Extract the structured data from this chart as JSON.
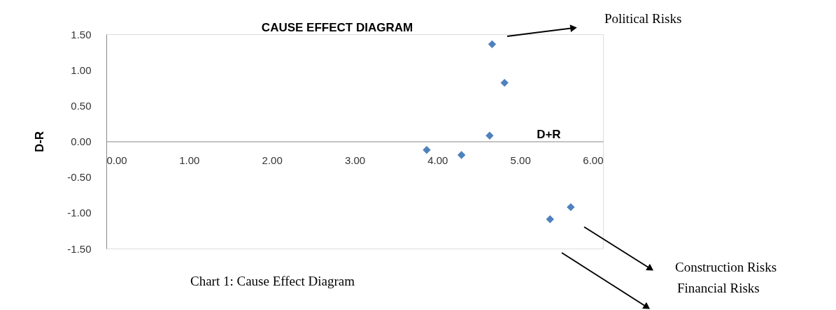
{
  "chart_data": {
    "type": "scatter",
    "title": "CAUSE EFFECT DIAGRAM",
    "xlabel": "D+R",
    "ylabel": "D-R",
    "x": [
      4.66,
      4.81,
      4.63,
      3.87,
      4.29,
      5.61,
      5.36
    ],
    "series": [
      {
        "color": "#4f81bd",
        "values": [
          1.36,
          0.82,
          0.08,
          -0.12,
          -0.19,
          -0.92,
          -1.09
        ]
      }
    ],
    "marker": "diamond",
    "grid": false,
    "xlim": [
      0,
      6
    ],
    "ylim": [
      -1.5,
      1.5
    ],
    "xticks": [
      {
        "value": 0,
        "label": "0.00"
      },
      {
        "value": 1,
        "label": "1.00"
      },
      {
        "value": 2,
        "label": "2.00"
      },
      {
        "value": 3,
        "label": "3.00"
      },
      {
        "value": 4,
        "label": "4.00"
      },
      {
        "value": 5,
        "label": "5.00"
      },
      {
        "value": 6,
        "label": "6.00"
      }
    ],
    "yticks": [
      {
        "value": -1.5,
        "label": "-1.50"
      },
      {
        "value": -1,
        "label": "-1.00"
      },
      {
        "value": -0.5,
        "label": "-0.50"
      },
      {
        "value": 0,
        "label": "0.00"
      },
      {
        "value": 0.5,
        "label": "0.50"
      },
      {
        "value": 1,
        "label": "1.00"
      },
      {
        "value": 1.5,
        "label": "1.50"
      }
    ],
    "annotations": [
      "Political Risks",
      "Construction Risks",
      "Financial Risks",
      "Chart 1: Cause Effect Diagram"
    ]
  }
}
